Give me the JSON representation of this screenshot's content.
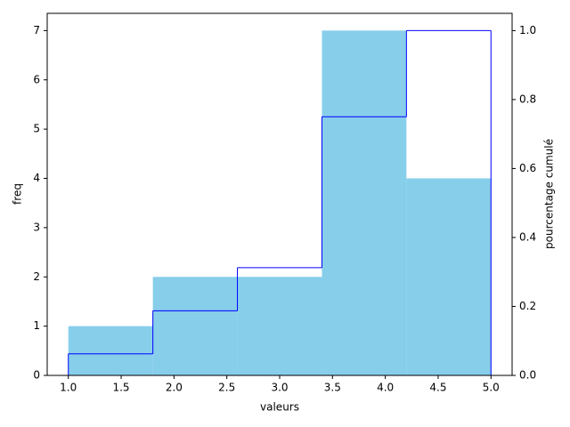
{
  "chart_data": {
    "type": "histogram",
    "xlabel": "valeurs",
    "ylabel": "freq",
    "y2label": "pourcentage cumulé",
    "bins": [
      1.0,
      1.8,
      2.6,
      3.4,
      4.2,
      5.0
    ],
    "values": [
      1,
      2,
      2,
      7,
      4
    ],
    "color": "#87ceeb",
    "cumulative": {
      "values": [
        0.0625,
        0.1875,
        0.3125,
        0.75,
        1.0
      ],
      "color": "#0000ff",
      "axis": "y2"
    },
    "xlim": [
      0.8,
      5.2
    ],
    "ylim": [
      0,
      7.35
    ],
    "y2lim": [
      0,
      1.05
    ],
    "xticks": [
      {
        "value": 1.0,
        "label": "1.0"
      },
      {
        "value": 1.5,
        "label": "1.5"
      },
      {
        "value": 2.0,
        "label": "2.0"
      },
      {
        "value": 2.5,
        "label": "2.5"
      },
      {
        "value": 3.0,
        "label": "3.0"
      },
      {
        "value": 3.5,
        "label": "3.5"
      },
      {
        "value": 4.0,
        "label": "4.0"
      },
      {
        "value": 4.5,
        "label": "4.5"
      },
      {
        "value": 5.0,
        "label": "5.0"
      }
    ],
    "yticks": [
      0,
      1,
      2,
      3,
      4,
      5,
      6,
      7
    ],
    "y2ticks": [
      {
        "value": 0,
        "label": "0.0"
      },
      {
        "value": 0.2,
        "label": "0.2"
      },
      {
        "value": 0.4,
        "label": "0.4"
      },
      {
        "value": 0.6,
        "label": "0.6"
      },
      {
        "value": 0.8,
        "label": "0.8"
      },
      {
        "value": 1.0,
        "label": "1.0"
      }
    ]
  }
}
